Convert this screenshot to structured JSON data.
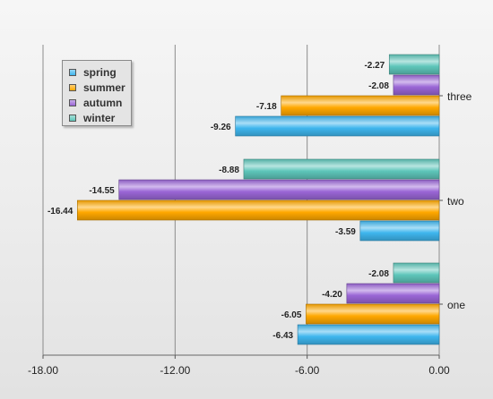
{
  "chart_data": {
    "type": "bar",
    "orientation": "horizontal",
    "categories": [
      "three",
      "two",
      "one"
    ],
    "series": [
      {
        "name": "spring",
        "color": "#3fb6ee",
        "values": [
          -9.26,
          -3.59,
          -6.43
        ]
      },
      {
        "name": "summer",
        "color": "#ffa800",
        "values": [
          -7.18,
          -16.44,
          -6.05
        ]
      },
      {
        "name": "autumn",
        "color": "#9a66d6",
        "values": [
          -2.08,
          -14.55,
          -4.2
        ]
      },
      {
        "name": "winter",
        "color": "#5ec6ba",
        "values": [
          -2.27,
          -8.88,
          -2.08
        ]
      }
    ],
    "data_labels": {
      "three": [
        "-9.26",
        "-7.18",
        "-2.08",
        "-2.27"
      ],
      "two": [
        "-3.59",
        "-16.44",
        "-14.55",
        "-8.88"
      ],
      "one": [
        "-6.43",
        "-6.05",
        "-4.20",
        "-2.08"
      ]
    },
    "xlim": [
      -18,
      0
    ],
    "x_ticks": [
      -18,
      -12,
      -6,
      0
    ],
    "x_tick_labels": [
      "-18.00",
      "-12.00",
      "-6.00",
      "0.00"
    ],
    "grid": true,
    "legend_position": "top-left",
    "title": "",
    "xlabel": "",
    "ylabel": ""
  }
}
